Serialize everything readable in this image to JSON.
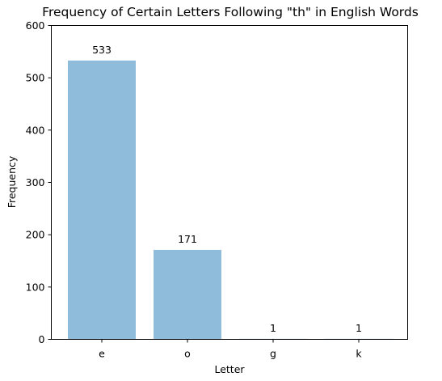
{
  "chart_data": {
    "type": "bar",
    "title": "Frequency of Certain Letters Following \"th\" in English Words",
    "xlabel": "Letter",
    "ylabel": "Frequency",
    "categories": [
      "e",
      "o",
      "g",
      "k"
    ],
    "values": [
      533,
      171,
      1,
      1
    ],
    "data_labels": [
      "533",
      "171",
      "1",
      "1"
    ],
    "ylim": [
      0,
      600
    ],
    "yticks": [
      0,
      100,
      200,
      300,
      400,
      500,
      600
    ],
    "grid": false,
    "bar_color": "#8fbcdb"
  }
}
